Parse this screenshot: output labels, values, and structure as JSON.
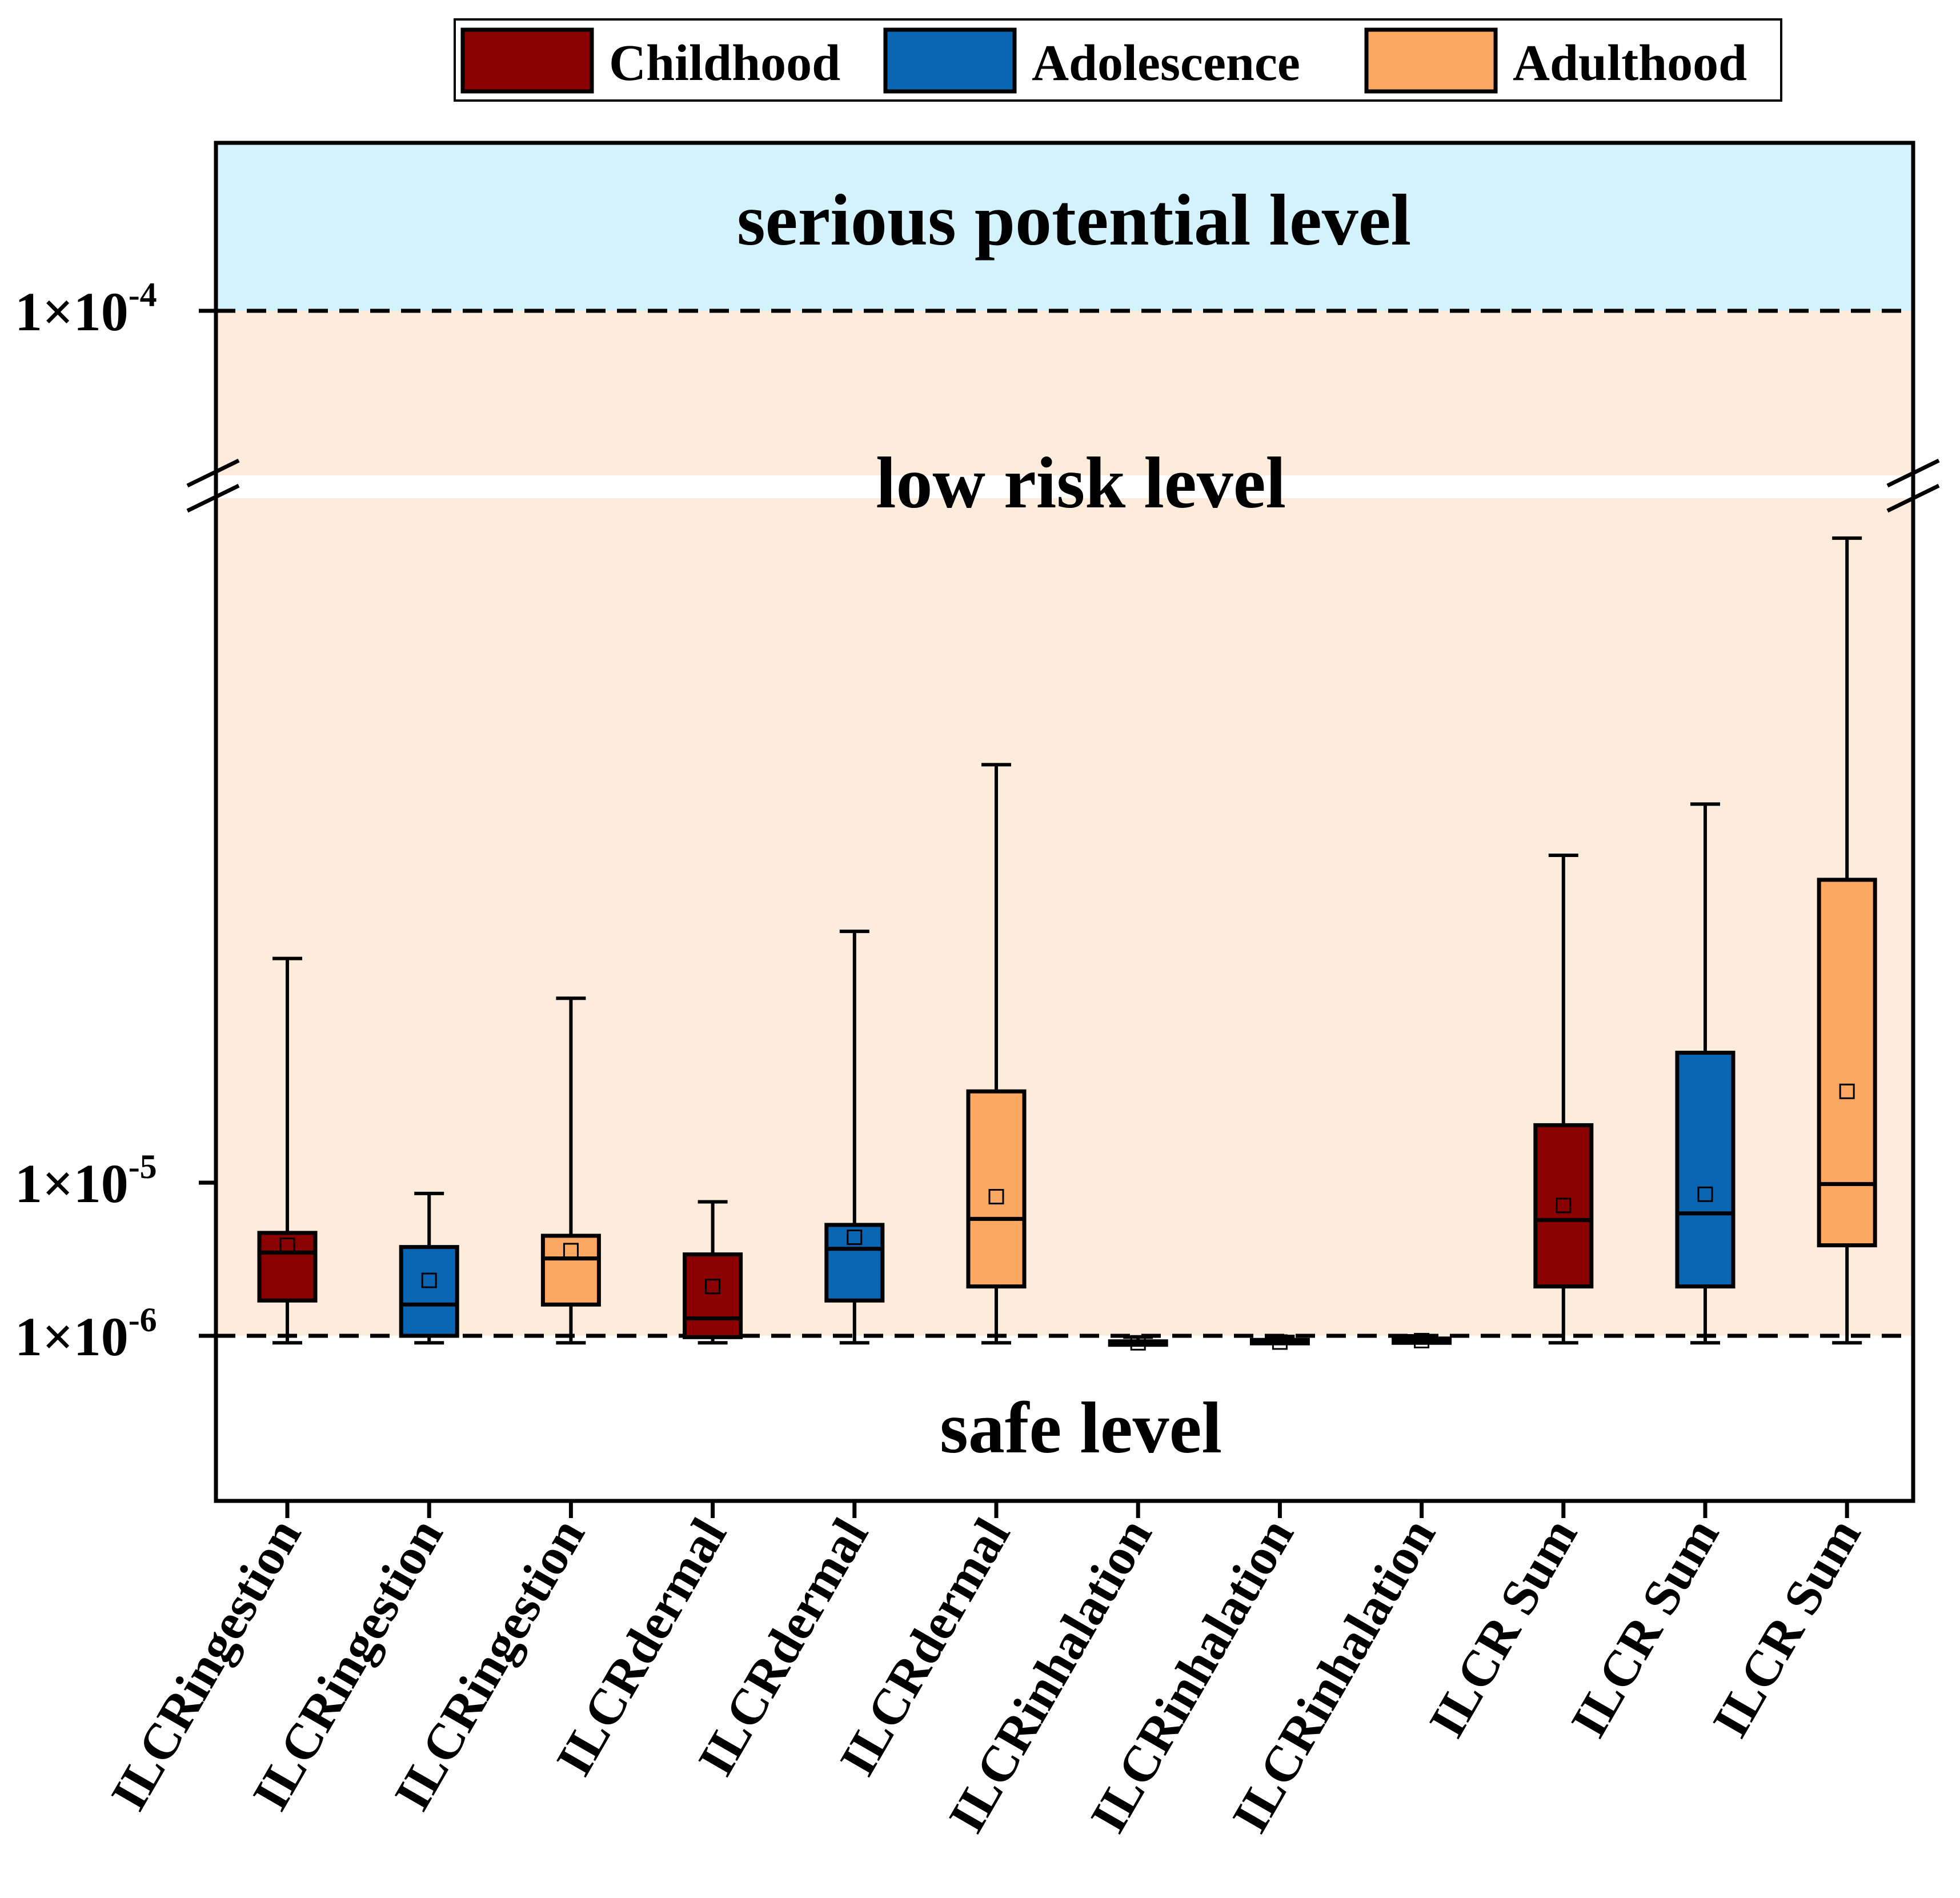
{
  "chart_data": {
    "type": "box",
    "y_scale": "piecewise (axis break between 1x10^-5 and 1x10^-4)",
    "y_ticks": [
      {
        "base": "1×10",
        "exp": "-6",
        "value": 1e-06
      },
      {
        "base": "1×10",
        "exp": "-5",
        "value": 1e-05
      },
      {
        "base": "1×10",
        "exp": "-4",
        "value": 0.0001
      }
    ],
    "threshold_lines": [
      1e-06,
      0.0001
    ],
    "bands": {
      "serious": {
        "label": "serious potential level",
        "color": "#d3f2fb"
      },
      "low": {
        "label": "low risk level",
        "color": "#fdebdc"
      },
      "safe": {
        "label": "safe level",
        "color": "#ffffff"
      }
    },
    "legend": [
      {
        "name": "Childhood",
        "color": "#8b0000"
      },
      {
        "name": "Adolescence",
        "color": "#0a66b3"
      },
      {
        "name": "Adulthood",
        "color": "#fca862"
      }
    ],
    "categories": [
      "ILCRingestion",
      "ILCRingestion",
      "ILCRingestion",
      "ILCRdermal",
      "ILCRdermal",
      "ILCRdermal",
      "ILCRinhalation",
      "ILCRinhalation",
      "ILCRinhalation",
      "ILCR Sum",
      "ILCR Sum",
      "ILCR Sum"
    ],
    "boxes": [
      {
        "group": "Childhood",
        "min": 9e-07,
        "q1": 1.7e-06,
        "median": 3.5e-06,
        "q3": 4.7e-06,
        "max": 1.35e-05,
        "mean": 3.9e-06
      },
      {
        "group": "Adolescence",
        "min": 9e-07,
        "q1": 1e-06,
        "median": 1.6e-06,
        "q3": 3.8e-06,
        "max": 8.5e-06,
        "mean": 2.3e-06
      },
      {
        "group": "Adulthood",
        "min": 9e-07,
        "q1": 1.6e-06,
        "median": 3.2e-06,
        "q3": 4.5e-06,
        "max": 1.28e-05,
        "mean": 3.6e-06
      },
      {
        "group": "Childhood",
        "min": 9e-07,
        "q1": 9.8e-07,
        "median": 1.3e-06,
        "q3": 3.4e-06,
        "max": 7.5e-06,
        "mean": 2.1e-06
      },
      {
        "group": "Adolescence",
        "min": 9e-07,
        "q1": 1.7e-06,
        "median": 3.7e-06,
        "q3": 5.3e-06,
        "max": 1.4e-05,
        "mean": 4.4e-06
      },
      {
        "group": "Adulthood",
        "min": 9e-07,
        "q1": 2.1e-06,
        "median": 5.8e-06,
        "q3": 1.13e-05,
        "max": 1.75e-05,
        "mean": 8.1e-06
      },
      {
        "group": "Childhood",
        "min": 9e-07,
        "q1": 9e-07,
        "median": 9e-07,
        "q3": 9.2e-07,
        "max": 9.8e-07,
        "mean": 9e-07
      },
      {
        "group": "Adolescence",
        "min": 9e-07,
        "q1": 9e-07,
        "median": 9.2e-07,
        "q3": 9.4e-07,
        "max": 9.9e-07,
        "mean": 9.1e-07
      },
      {
        "group": "Childhood",
        "min": 9e-07,
        "q1": 9e-07,
        "median": 9.3e-07,
        "q3": 9.6e-07,
        "max": 1e-06,
        "mean": 9.3e-07
      },
      {
        "group": "Childhood",
        "min": 9e-07,
        "q1": 2.1e-06,
        "median": 5.7e-06,
        "q3": 1.08e-05,
        "max": 1.55e-05,
        "mean": 7.1e-06
      },
      {
        "group": "Adolescence",
        "min": 9e-07,
        "q1": 2.1e-06,
        "median": 6.3e-06,
        "q3": 1.19e-05,
        "max": 1.66e-05,
        "mean": 8.4e-06
      },
      {
        "group": "Adulthood",
        "min": 9e-07,
        "q1": 3.9e-06,
        "median": 9.8e-06,
        "q3": 1.5e-05,
        "max": 2.37e-05,
        "mean": 1.13e-05
      }
    ]
  }
}
